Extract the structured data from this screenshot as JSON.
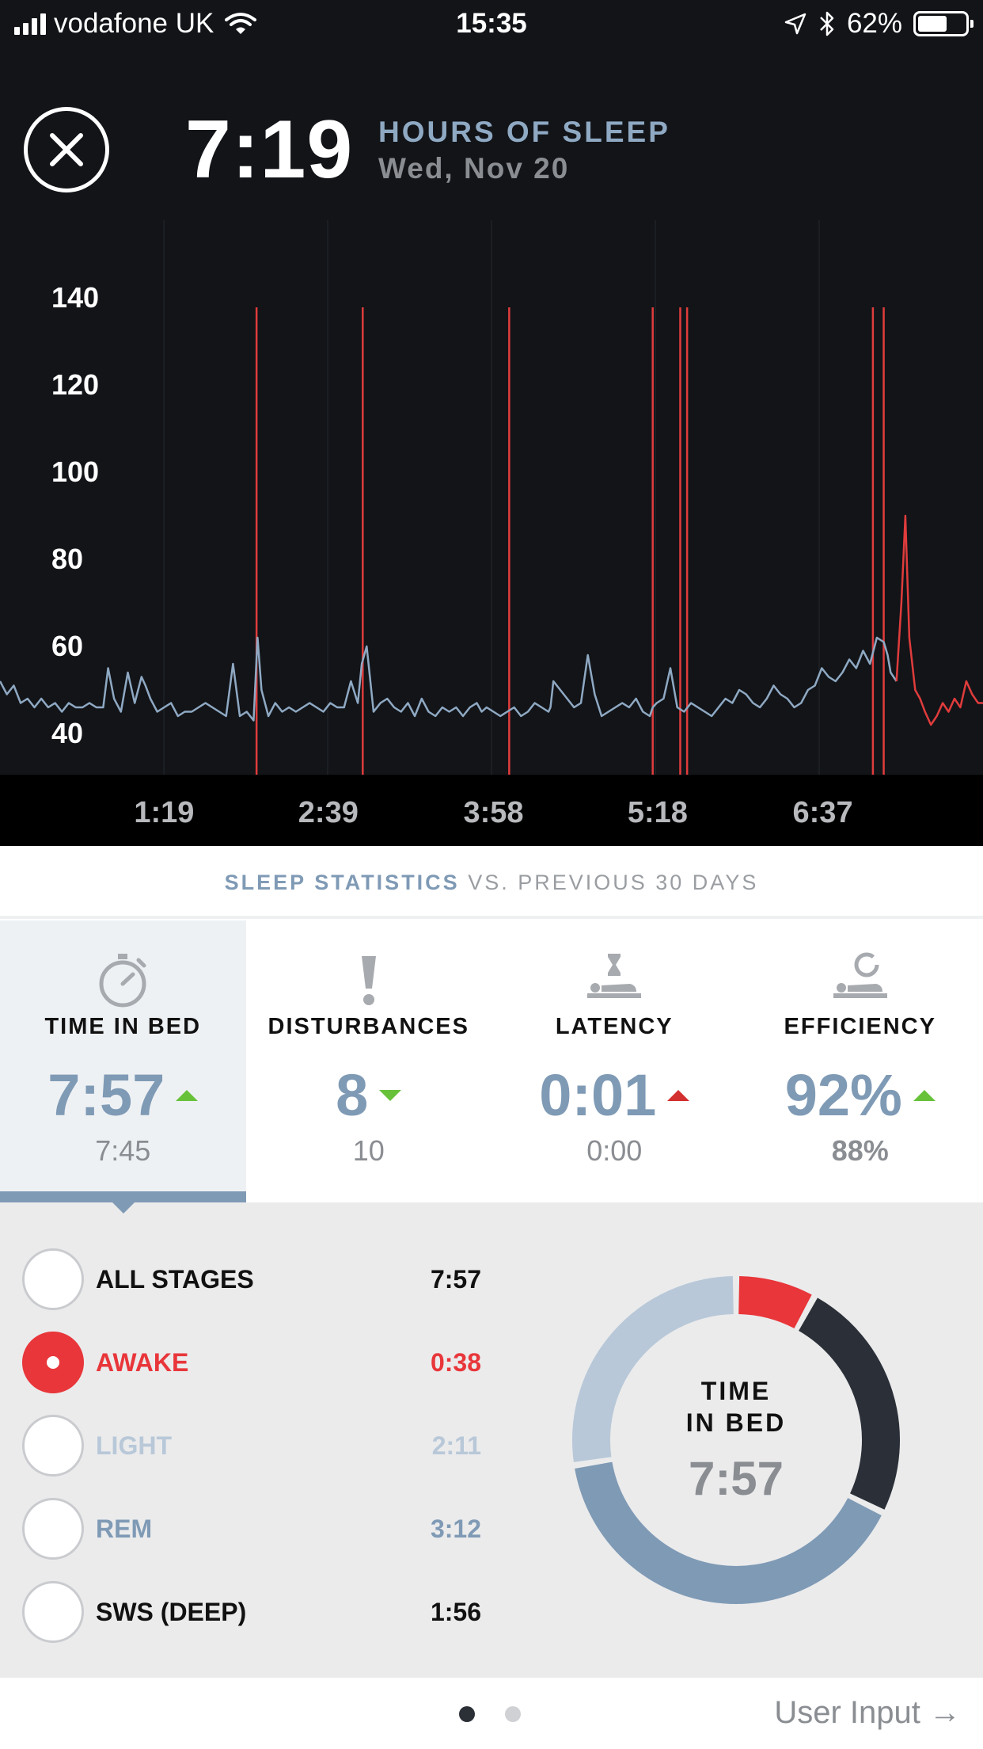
{
  "status_bar": {
    "carrier": "vodafone UK",
    "time": "15:35",
    "battery": "62%",
    "battery_level": 0.62
  },
  "header": {
    "hours": "7:19",
    "label": "HOURS OF SLEEP",
    "date": "Wed, Nov 20"
  },
  "chart_data": {
    "type": "line",
    "y_ticks": [
      "140",
      "120",
      "100",
      "80",
      "60",
      "40"
    ],
    "ylim": [
      40,
      140
    ],
    "x_ticks": [
      "1:19",
      "2:39",
      "3:58",
      "5:18",
      "6:37"
    ],
    "xlim": [
      0,
      100
    ],
    "x_tick_positions": [
      16.7,
      33.4,
      50.2,
      66.9,
      83.7
    ],
    "disturbance_markers_x": [
      26.1,
      36.9,
      51.8,
      66.4,
      69.2,
      69.9,
      88.8,
      89.9
    ],
    "series": [
      {
        "color": "#8fa9c3",
        "x": [
          0,
          0.7,
          1.4,
          2.1,
          2.8,
          3.5,
          4.2,
          4.9,
          5.6,
          6.3,
          7,
          7.7,
          8.4,
          9.1,
          9.8,
          10.5,
          11,
          11.6,
          12.3,
          13,
          13.7,
          14.4,
          14.8,
          15.3,
          16,
          16.7,
          17.4,
          18.1,
          18.8,
          19.5,
          20.2,
          20.9,
          21.6,
          22.3,
          23,
          23.7,
          24.4,
          25.1,
          25.8,
          26.2,
          26.6,
          27.3,
          28,
          28.7,
          29.4,
          30.1,
          30.8,
          31.5,
          32.2,
          32.9,
          33.6,
          34.3,
          35,
          35.7,
          36.4,
          36.8,
          37.3,
          38,
          38.7,
          39.4,
          40.1,
          40.8,
          41.5,
          42.2,
          42.9,
          43.6,
          44.3,
          45,
          45.7,
          46.4,
          47.1,
          47.8,
          48.5,
          49,
          49.5,
          50.2,
          50.9,
          51.6,
          52.3,
          53,
          53.7,
          54.4,
          55.1,
          55.8,
          56,
          56.3,
          57,
          57.7,
          58.4,
          59.1,
          59.8,
          60.5,
          61.2,
          61.9,
          62.6,
          63.3,
          64,
          64.7,
          65.4,
          66.1,
          66.4,
          66.8,
          67.5,
          68.2,
          68.9,
          69.6,
          70.3,
          71,
          71.7,
          72.4,
          73.1,
          73.8,
          74.5,
          75.2,
          75.9,
          76.6,
          77.3,
          78,
          78.7,
          79.4,
          80.1,
          80.8,
          81.5,
          82.2,
          82.9,
          83.6,
          84.3,
          85,
          85.7,
          86.4,
          87.1,
          87.8,
          88.5,
          89.2,
          89.9,
          90.3,
          90.6,
          91.2
        ],
        "values": [
          52,
          49,
          51,
          47,
          48,
          46,
          48,
          46,
          47,
          45,
          47,
          46,
          46,
          47,
          46,
          46,
          55,
          48,
          45,
          54,
          47,
          53,
          51,
          48,
          45,
          46,
          47,
          44,
          45,
          45,
          46,
          47,
          46,
          45,
          44,
          56,
          44,
          45,
          43,
          62,
          50,
          44,
          47,
          45,
          46,
          45,
          46,
          47,
          46,
          45,
          47,
          46,
          46,
          52,
          47,
          56,
          60,
          45,
          47,
          48,
          46,
          45,
          47,
          44,
          48,
          45,
          44,
          46,
          45,
          46,
          44,
          46,
          47,
          45,
          46,
          45,
          44,
          45,
          46,
          44,
          45,
          47,
          46,
          45,
          46,
          52,
          50,
          48,
          46,
          47,
          58,
          49,
          44,
          45,
          46,
          47,
          46,
          48,
          45,
          44,
          46,
          47,
          48,
          55,
          46,
          45,
          47,
          46,
          45,
          44,
          46,
          48,
          47,
          50,
          49,
          47,
          46,
          48,
          51,
          49,
          48,
          46,
          47,
          50,
          51,
          55,
          53,
          52,
          54,
          57,
          55,
          59,
          56,
          62,
          61,
          58,
          54,
          52
        ]
      },
      {
        "color": "#e03c3c",
        "x": [
          91.2,
          91.7,
          92.1,
          92.5,
          93.1,
          93.6,
          94.1,
          94.7,
          95.3,
          95.9,
          96.5,
          97.1,
          97.7,
          98.3,
          98.9,
          99.5,
          100
        ],
        "values": [
          52,
          70,
          90,
          62,
          50,
          48,
          45,
          42,
          44,
          47,
          45,
          48,
          46,
          52,
          49,
          47,
          47
        ]
      }
    ]
  },
  "statistics": {
    "label": "SLEEP STATISTICS",
    "sub": "VS. PREVIOUS 30 DAYS",
    "tiles": [
      {
        "label": "TIME IN BED",
        "value": "7:57",
        "prev": "7:45",
        "trend": "up",
        "trend_color": "#67c23a",
        "icon": "stopwatch-icon"
      },
      {
        "label": "DISTURBANCES",
        "value": "8",
        "prev": "10",
        "trend": "down",
        "trend_color": "#67c23a",
        "icon": "exclamation-icon"
      },
      {
        "label": "LATENCY",
        "value": "0:01",
        "prev": "0:00",
        "trend": "up",
        "trend_color": "#d32f2f",
        "icon": "hourglass-bed-icon"
      },
      {
        "label": "EFFICIENCY",
        "value": "92%",
        "prev": "88%",
        "trend": "up",
        "trend_color": "#67c23a",
        "icon": "circle-bed-icon"
      }
    ]
  },
  "stages": {
    "items": [
      {
        "name": "ALL STAGES",
        "time": "7:57",
        "color": "#111111",
        "selected": false
      },
      {
        "name": "AWAKE",
        "time": "0:38",
        "color": "#e8363a",
        "selected": true
      },
      {
        "name": "LIGHT",
        "time": "2:11",
        "color": "#b8c8d8",
        "selected": false
      },
      {
        "name": "REM",
        "time": "3:12",
        "color": "#7f9ab5",
        "selected": false
      },
      {
        "name": "SWS (DEEP)",
        "time": "1:56",
        "color": "#111111",
        "selected": false
      }
    ],
    "donut": {
      "line1": "TIME",
      "line2": "IN BED",
      "value": "7:57",
      "segments": [
        {
          "name": "AWAKE",
          "minutes": 38,
          "color": "#e8363a"
        },
        {
          "name": "SWS (DEEP)",
          "minutes": 116,
          "color": "#2b3038"
        },
        {
          "name": "REM",
          "minutes": 192,
          "color": "#7f9ab5"
        },
        {
          "name": "LIGHT",
          "minutes": 131,
          "color": "#b8c8d8"
        }
      ]
    }
  },
  "footer": {
    "link": "User Input →"
  }
}
